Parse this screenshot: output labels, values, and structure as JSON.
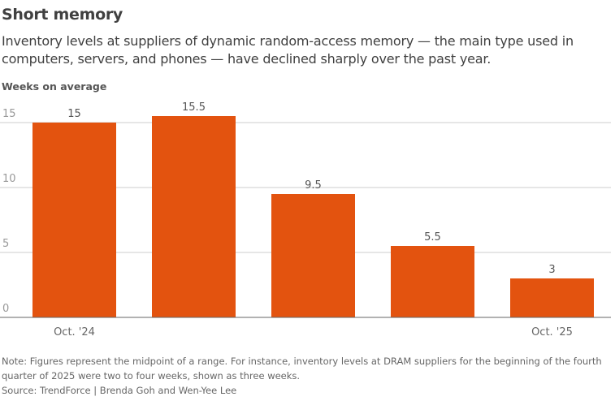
{
  "title": "Short memory",
  "subtitle": "Inventory levels at suppliers of dynamic random-access memory — the main type used in computers, servers, and phones — have declined sharply over the past year.",
  "note": "Note: Figures represent the midpoint of a range. For instance, inventory levels at DRAM suppliers for the beginning of the fourth quarter of 2025 were two to four weeks, shown as three weeks.",
  "source": "Source: TrendForce | Brenda Goh and Wen-Yee Lee",
  "chart_data": {
    "type": "bar",
    "ylabel": "Weeks on average",
    "categories": [
      "Oct. '24",
      "",
      "",
      "",
      "Oct. '25"
    ],
    "values": [
      15,
      15.5,
      9.5,
      5.5,
      3
    ],
    "data_labels": [
      "15",
      "15.5",
      "9.5",
      "5.5",
      "3"
    ],
    "yticks": [
      0,
      5,
      10,
      15
    ],
    "ylim": [
      0,
      16.5
    ],
    "grid": true,
    "bar_color": "#e3530f"
  }
}
